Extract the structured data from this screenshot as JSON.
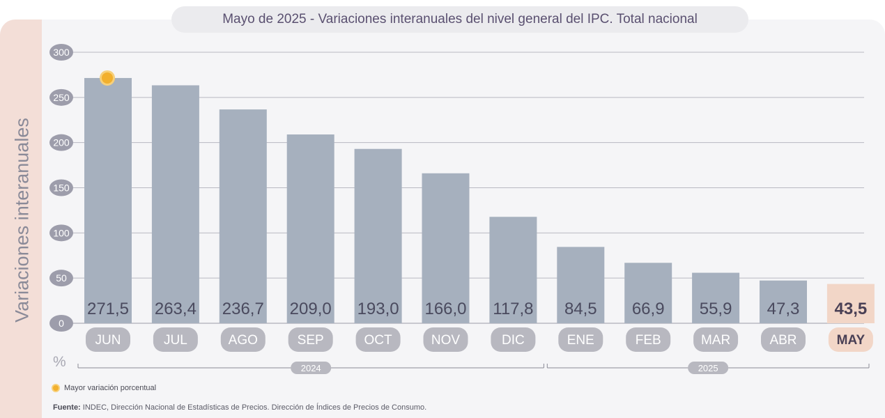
{
  "title_prefix": "Mayo de 2025 - ",
  "title_main": "Variaciones interanuales del nivel general del IPC. Total nacional",
  "legend_text": "Mayor variación porcentual",
  "source_label": "Fuente:",
  "source_text": " INDEC, Dirección Nacional de Estadísticas de Precios. Dirección de Índices de Precios de Consumo.",
  "colors": {
    "bar": "#a6b0be",
    "highlight": "#f2d6c7",
    "marker": "#f2b02e",
    "tick_pill": "#b8b8c0"
  },
  "chart_data": {
    "type": "bar",
    "title": "Mayo de 2025 - Variaciones interanuales del nivel general del IPC. Total nacional",
    "ylabel": "Variaciones interanuales",
    "yunit": "%",
    "ylim": [
      0,
      300
    ],
    "yticks": [
      0,
      50,
      100,
      150,
      200,
      250,
      300
    ],
    "categories": [
      "JUN",
      "JUL",
      "AGO",
      "SEP",
      "OCT",
      "NOV",
      "DIC",
      "ENE",
      "FEB",
      "MAR",
      "ABR",
      "MAY"
    ],
    "values": [
      271.5,
      263.4,
      236.7,
      209.0,
      193.0,
      166.0,
      117.8,
      84.5,
      66.9,
      55.9,
      47.3,
      43.5
    ],
    "value_labels": [
      "271,5",
      "263,4",
      "236,7",
      "209,0",
      "193,0",
      "166,0",
      "117,8",
      "84,5",
      "66,9",
      "55,9",
      "47,3",
      "43,5"
    ],
    "highlight_index": 11,
    "max_marker_index": 0,
    "year_groups": [
      {
        "label": "2024",
        "from": 0,
        "to": 6
      },
      {
        "label": "2025",
        "from": 7,
        "to": 11
      }
    ]
  }
}
